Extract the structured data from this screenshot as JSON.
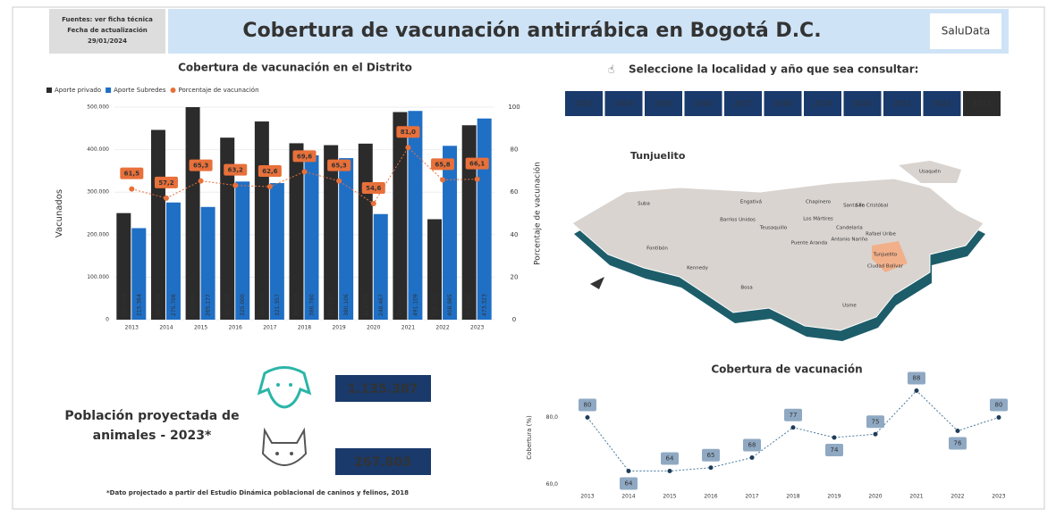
{
  "header": {
    "source_lines": [
      "Fuentes: ver ficha técnica",
      "Fecha de actualización",
      "29/01/2024"
    ],
    "title": "Cobertura de vacunación antirrábica en Bogotá D.C.",
    "logo": "SaluData"
  },
  "selector": {
    "title": "Seleccione la localidad y año que sea consultar:",
    "years": [
      "2013",
      "2014",
      "2015",
      "2016",
      "2017",
      "2018",
      "2019",
      "2020",
      "2021",
      "2022",
      "2023"
    ],
    "selected": "2023"
  },
  "map": {
    "title": "Tunjuelito",
    "selected": "Tunjuelito",
    "localities": [
      "Usaquén",
      "Suba",
      "Engativá",
      "Barrios Unidos",
      "Teusaquillo",
      "Chapinero",
      "Santa Fe",
      "Los Mártires",
      "Fontibón",
      "Puente Aranda",
      "Antonio Nariño",
      "San Cristóbal",
      "Rafael Uribe",
      "Tunjuelito",
      "Ciudad Bolívar",
      "Kennedy",
      "Bosa",
      "Usme",
      "Candelaria"
    ]
  },
  "kpi": {
    "title_lines": [
      "Población proyectada de",
      "animales - 2023*"
    ],
    "dogs": "1.135.387",
    "cats": "267.803",
    "footnote": "*Dato projectado a partir del Estudio Dinámica poblacional de caninos y felinos, 2018"
  },
  "chart_data": [
    {
      "type": "bar",
      "title": "Cobertura de vacunación en el Distrito",
      "categories": [
        "2013",
        "2014",
        "2015",
        "2016",
        "2017",
        "2018",
        "2019",
        "2020",
        "2021",
        "2022",
        "2023"
      ],
      "series": [
        {
          "name": "Aporte privado",
          "color": "#2b2b2b",
          "values": [
            250728,
            446458,
            500000,
            428239,
            466311,
            415053,
            410587,
            414163,
            488451,
            236332,
            457415
          ],
          "value_labels": [
            "250.728",
            "446.458",
            "500.000",
            "428.239",
            "466.311",
            "415.053",
            "410.587",
            "414.163",
            "488.451",
            "236.332",
            "457.415"
          ]
        },
        {
          "name": "Aporte Subredes",
          "color": "#1f6fc5",
          "values": [
            215364,
            275706,
            265177,
            325000,
            321357,
            386780,
            380106,
            248467,
            491109,
            408985,
            473323
          ],
          "value_labels": [
            "215.364",
            "275.706",
            "265.177",
            "325.000",
            "321.357",
            "386.780",
            "380.106",
            "248.467",
            "491.109",
            "408.985",
            "473.323"
          ]
        },
        {
          "name": "Porcentaje de vacunación",
          "color": "#e8703a",
          "type": "line",
          "axis": "y2",
          "values": [
            61.5,
            57.2,
            65.3,
            63.2,
            62.6,
            69.6,
            65.3,
            54.6,
            81.0,
            65.8,
            66.1
          ],
          "value_labels": [
            "61,5",
            "57,2",
            "65,3",
            "63,2",
            "62,6",
            "69,6",
            "65,3",
            "54,6",
            "81,0",
            "65,8",
            "66,1"
          ]
        }
      ],
      "ylabel": "Vacunados",
      "y2label": "Porcentaje de vacunación",
      "ylim": [
        0,
        500000
      ],
      "yticks": [
        0,
        {
          "value": 100000,
          "label": "100.000"
        },
        {
          "value": 200000,
          "label": "200.000"
        },
        {
          "value": 300000,
          "label": "300.000"
        },
        {
          "value": 400000,
          "label": "400.000"
        },
        {
          "value": 500000,
          "label": "500.000"
        }
      ],
      "y2lim": [
        0,
        100
      ],
      "y2ticks": [
        0,
        20,
        40,
        60,
        80,
        100
      ]
    },
    {
      "type": "line",
      "title": "Cobertura de vacunación",
      "ylabel": "Cobertura (%)",
      "categories": [
        "2013",
        "2014",
        "2015",
        "2016",
        "2017",
        "2018",
        "2019",
        "2020",
        "2021",
        "2022",
        "2023"
      ],
      "series": [
        {
          "name": "Cobertura",
          "color": "#1f3d5a",
          "values": [
            80,
            64,
            64,
            65,
            68,
            77,
            74,
            75,
            88,
            76,
            80
          ]
        }
      ],
      "ylim": [
        58,
        90
      ],
      "yticks": [
        {
          "value": 60,
          "label": "60,0"
        },
        {
          "value": 80,
          "label": "80,0"
        }
      ]
    }
  ]
}
